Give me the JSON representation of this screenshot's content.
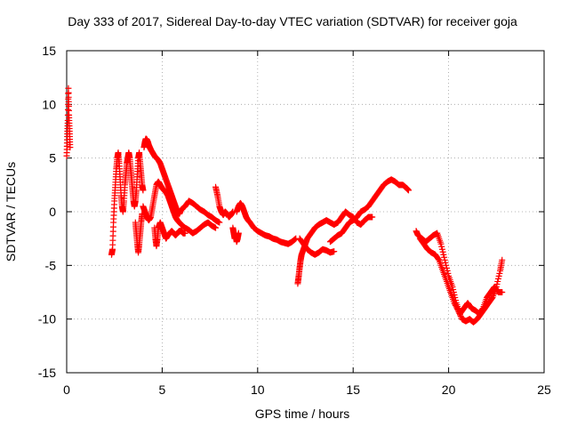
{
  "chart_data": {
    "type": "scatter",
    "title": "Day 333 of 2017, Sidereal Day-to-day VTEC variation (SDTVAR) for receiver goja",
    "xlabel": "GPS time / hours",
    "ylabel": "SDTVAR / TECUs",
    "xlim": [
      0,
      25
    ],
    "ylim": [
      -15,
      15
    ],
    "xticks": [
      0,
      5,
      10,
      15,
      20,
      25
    ],
    "yticks": [
      -15,
      -10,
      -5,
      0,
      5,
      10,
      15
    ],
    "xtick_labels": [
      "0",
      "5",
      "10",
      "15",
      "20",
      "25"
    ],
    "ytick_labels": [
      "-15",
      "-10",
      "-5",
      "0",
      "5",
      "10",
      "15"
    ],
    "grid": true,
    "marker": "+",
    "color": "#ff0000",
    "series": [
      {
        "name": "SDTVAR",
        "segments": [
          {
            "x": [
              0.0,
              0.03,
              0.06,
              0.09,
              0.12,
              0.15,
              0.18
            ],
            "y": [
              5.2,
              7.0,
              8.5,
              11.5,
              9.0,
              7.5,
              6.0
            ]
          },
          {
            "x": [
              2.35,
              2.4,
              2.45,
              2.5,
              2.55,
              2.6,
              2.65,
              2.7,
              2.75,
              2.8,
              2.85,
              2.9,
              2.95,
              3.0,
              3.05,
              3.1,
              3.15,
              3.2,
              3.25,
              3.3,
              3.35,
              3.4,
              3.45,
              3.5,
              3.55,
              3.6,
              3.65,
              3.7,
              3.75,
              3.8,
              3.85,
              3.9,
              3.95,
              4.0
            ],
            "y": [
              -4.0,
              -3.5,
              -1.0,
              1.0,
              2.5,
              4.0,
              5.0,
              5.5,
              4.5,
              3.0,
              1.5,
              0.5,
              0.0,
              1.0,
              2.5,
              3.5,
              4.5,
              5.0,
              5.5,
              5.0,
              4.0,
              3.0,
              2.0,
              1.0,
              0.5,
              1.0,
              2.0,
              3.5,
              5.0,
              5.5,
              4.5,
              3.5,
              2.5,
              2.0
            ]
          },
          {
            "x": [
              3.6,
              3.65,
              3.7,
              3.75,
              3.8,
              3.85,
              3.9,
              3.95
            ],
            "y": [
              -1.0,
              -2.0,
              -3.0,
              -3.8,
              -3.0,
              -2.0,
              -1.0,
              -0.2
            ]
          },
          {
            "x": [
              4.05,
              4.1,
              4.15,
              4.2,
              4.25,
              4.3,
              4.35,
              4.4,
              4.5,
              4.6,
              4.7,
              4.8,
              4.9,
              5.0,
              5.1,
              5.2,
              5.3,
              5.4,
              5.5,
              5.6,
              5.7,
              5.8,
              5.9,
              6.0,
              6.2,
              6.4,
              6.6,
              6.8,
              7.0,
              7.2,
              7.4,
              7.6,
              7.8,
              8.0
            ],
            "y": [
              6.0,
              6.5,
              6.8,
              6.7,
              6.5,
              6.2,
              6.0,
              5.8,
              5.5,
              5.2,
              5.0,
              4.8,
              4.5,
              4.0,
              3.5,
              3.0,
              2.5,
              2.0,
              1.5,
              1.0,
              0.5,
              0.0,
              -0.2,
              0.2,
              0.5,
              1.0,
              0.8,
              0.5,
              0.2,
              0.0,
              -0.3,
              -0.5,
              -0.8,
              -1.0
            ]
          },
          {
            "x": [
              4.0,
              4.1,
              4.2,
              4.3,
              4.4,
              4.5,
              4.6,
              4.7,
              4.8,
              4.9,
              5.0,
              5.1,
              5.2,
              5.3,
              5.4,
              5.5,
              5.6,
              5.7,
              5.8,
              5.9,
              6.0,
              6.2,
              6.4,
              6.6,
              6.8,
              7.0,
              7.2,
              7.4,
              7.6,
              7.8
            ],
            "y": [
              0.5,
              0.0,
              -0.5,
              -0.8,
              -0.5,
              0.5,
              1.5,
              2.5,
              2.8,
              2.5,
              2.2,
              2.0,
              1.8,
              1.5,
              1.0,
              0.5,
              0.0,
              -0.5,
              -0.8,
              -1.0,
              -1.2,
              -1.5,
              -1.7,
              -2.0,
              -1.8,
              -1.5,
              -1.2,
              -1.0,
              -1.3,
              -1.5
            ]
          },
          {
            "x": [
              4.6,
              4.65,
              4.7,
              4.75,
              4.8,
              4.9,
              5.0,
              5.1,
              5.2,
              5.3,
              5.4,
              5.5,
              5.6,
              5.7,
              5.8,
              5.9,
              6.0,
              6.1,
              6.2
            ],
            "y": [
              -1.5,
              -2.5,
              -3.2,
              -2.5,
              -1.5,
              -1.0,
              -1.5,
              -2.0,
              -2.5,
              -2.2,
              -2.0,
              -1.8,
              -2.0,
              -2.2,
              -2.0,
              -1.8,
              -1.8,
              -2.0,
              -2.0
            ]
          },
          {
            "x": [
              7.8,
              7.9,
              8.0,
              8.1,
              8.2,
              8.3,
              8.4,
              8.5,
              8.6,
              8.7
            ],
            "y": [
              2.3,
              1.5,
              0.5,
              0.0,
              -0.3,
              0.0,
              -0.2,
              -0.5,
              -0.3,
              0.0
            ]
          },
          {
            "x": [
              8.7,
              8.75,
              8.8,
              8.85,
              8.9,
              8.95,
              9.0
            ],
            "y": [
              -1.5,
              -2.0,
              -2.5,
              -2.2,
              -2.8,
              -2.5,
              -2.0
            ]
          },
          {
            "x": [
              8.9,
              9.0,
              9.1,
              9.2,
              9.3,
              9.4,
              9.5,
              9.6,
              9.8,
              10.0,
              10.2,
              10.4,
              10.6,
              10.8,
              11.0,
              11.2,
              11.4,
              11.6,
              11.8,
              12.0
            ],
            "y": [
              0.0,
              0.5,
              0.8,
              0.5,
              0.0,
              -0.5,
              -0.8,
              -1.0,
              -1.5,
              -1.8,
              -2.0,
              -2.2,
              -2.3,
              -2.5,
              -2.6,
              -2.8,
              -2.9,
              -3.0,
              -2.8,
              -2.5
            ]
          },
          {
            "x": [
              12.1,
              12.15,
              12.2,
              12.25,
              12.3,
              12.4,
              12.5,
              12.6,
              12.8,
              13.0,
              13.2,
              13.4,
              13.6,
              13.8,
              14.0,
              14.2,
              14.4,
              14.6,
              14.8,
              15.0,
              15.2,
              15.4,
              15.6,
              15.8,
              16.0
            ],
            "y": [
              -6.7,
              -6.0,
              -5.2,
              -4.5,
              -4.0,
              -3.5,
              -3.0,
              -2.5,
              -2.0,
              -1.5,
              -1.2,
              -1.0,
              -0.8,
              -1.0,
              -1.2,
              -1.0,
              -0.5,
              0.0,
              -0.3,
              -0.5,
              -1.0,
              -1.2,
              -0.8,
              -0.5,
              -0.5
            ]
          },
          {
            "x": [
              12.2,
              12.4,
              12.6,
              12.8,
              13.0,
              13.2,
              13.4,
              13.6,
              13.8,
              14.0
            ],
            "y": [
              -2.5,
              -3.0,
              -3.5,
              -3.8,
              -4.0,
              -3.8,
              -3.5,
              -3.6,
              -3.8,
              -3.7
            ]
          },
          {
            "x": [
              13.8,
              14.0,
              14.2,
              14.4,
              14.6,
              14.8,
              15.0,
              15.2,
              15.4,
              15.6,
              15.8,
              16.0,
              16.2,
              16.4,
              16.6,
              16.8,
              17.0,
              17.2,
              17.4,
              17.6,
              17.8,
              17.9
            ],
            "y": [
              -2.8,
              -2.5,
              -2.2,
              -2.0,
              -1.5,
              -1.0,
              -0.8,
              -0.5,
              0.0,
              0.2,
              0.5,
              1.0,
              1.5,
              2.0,
              2.5,
              2.8,
              3.0,
              2.8,
              2.5,
              2.5,
              2.2,
              2.0
            ]
          },
          {
            "x": [
              18.3,
              18.4,
              18.6,
              18.8,
              19.0,
              19.2,
              19.4,
              19.6,
              19.8,
              20.0,
              20.2,
              20.4,
              20.6,
              20.8,
              21.0,
              21.2,
              21.4,
              21.6,
              21.8,
              22.0,
              22.2,
              22.4,
              22.6,
              22.8
            ],
            "y": [
              -1.8,
              -2.2,
              -2.5,
              -2.8,
              -2.5,
              -2.2,
              -2.0,
              -3.0,
              -4.5,
              -6.0,
              -7.0,
              -8.5,
              -9.5,
              -9.0,
              -8.5,
              -9.0,
              -9.2,
              -9.5,
              -9.0,
              -8.0,
              -7.5,
              -7.0,
              -7.5,
              -7.5
            ]
          },
          {
            "x": [
              18.5,
              18.7,
              18.9,
              19.1,
              19.3,
              19.5,
              19.7,
              19.9,
              20.1,
              20.3,
              20.5,
              20.7,
              20.9,
              21.1,
              21.3,
              21.5,
              21.7,
              21.9,
              22.1,
              22.3,
              22.5,
              22.7,
              22.8
            ],
            "y": [
              -2.5,
              -3.0,
              -3.5,
              -3.8,
              -4.0,
              -4.5,
              -5.5,
              -6.5,
              -7.5,
              -8.5,
              -9.2,
              -10.0,
              -10.2,
              -10.0,
              -10.3,
              -10.0,
              -9.5,
              -9.0,
              -8.5,
              -8.0,
              -7.0,
              -5.5,
              -4.5
            ]
          }
        ]
      }
    ]
  }
}
